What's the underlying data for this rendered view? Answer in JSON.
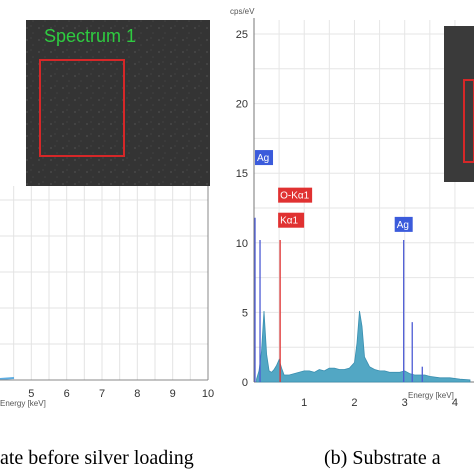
{
  "left_panel": {
    "inset_label": "Spectrum 1",
    "x_tick_labels": [
      "5",
      "6",
      "7",
      "8",
      "9",
      "10"
    ],
    "x_axis_label": "Energy [keV]",
    "caption": "ate before silver loading",
    "colors": {
      "spectrum": "#5dade2",
      "roi": "#d62728",
      "grid": "#e3e3e3"
    }
  },
  "right_panel": {
    "y_unit": "cps/eV",
    "y_tick_labels": [
      "0",
      "5",
      "10",
      "15",
      "20",
      "25"
    ],
    "x_tick_labels": [
      "1",
      "2",
      "3",
      "4"
    ],
    "x_axis_label": "Energy [keV]",
    "caption": "(b) Substrate a",
    "peak_labels": [
      {
        "text": "Ag",
        "energy_keV": 0.06,
        "color": "#3b5bdb"
      },
      {
        "text": "O-Kα1",
        "energy_keV": 0.52,
        "color": "#e03131"
      },
      {
        "text": "Kα1",
        "energy_keV": 0.52,
        "color": "#e03131"
      },
      {
        "text": "Ag",
        "energy_keV": 2.98,
        "color": "#3b5bdb"
      }
    ],
    "colors": {
      "spectrum": "#52a7c4",
      "line_blue": "#4c5bd4",
      "line_red": "#e03131"
    }
  },
  "chart_data": {
    "type": "area",
    "title": "",
    "xlabel": "Energy [keV]",
    "ylabel": "cps/eV",
    "xlim": [
      0,
      4.3
    ],
    "ylim": [
      0,
      26
    ],
    "grid": true,
    "series": [
      {
        "x": [
          0.05,
          0.1,
          0.15,
          0.2,
          0.25,
          0.3,
          0.35,
          0.4,
          0.45,
          0.5,
          0.55,
          0.6,
          0.7,
          0.8,
          0.9,
          1.0,
          1.1,
          1.2,
          1.3,
          1.4,
          1.5,
          1.6,
          1.7,
          1.8,
          1.9,
          2.0,
          2.05,
          2.1,
          2.15,
          2.2,
          2.3,
          2.4,
          2.5,
          2.6,
          2.7,
          2.8,
          2.9,
          3.0,
          3.1,
          3.2,
          3.3,
          3.4,
          3.5,
          3.7,
          3.9,
          4.1,
          4.3
        ],
        "values": [
          0.2,
          0.8,
          2.2,
          5.1,
          2.0,
          0.8,
          0.7,
          0.9,
          1.2,
          1.6,
          1.0,
          0.5,
          0.5,
          0.6,
          0.7,
          0.8,
          0.8,
          0.7,
          0.9,
          0.8,
          1.0,
          1.0,
          0.9,
          0.9,
          1.0,
          1.4,
          2.8,
          5.1,
          4.0,
          1.8,
          1.1,
          0.9,
          0.8,
          0.8,
          0.7,
          0.7,
          0.7,
          0.8,
          0.6,
          0.5,
          0.5,
          0.5,
          0.4,
          0.3,
          0.3,
          0.2,
          0.15
        ]
      }
    ],
    "peak_lines": [
      {
        "energy_keV": 0.02,
        "height": 11.8,
        "color": "blue"
      },
      {
        "energy_keV": 0.12,
        "height": 10.2,
        "color": "blue"
      },
      {
        "energy_keV": 0.52,
        "height": 10.2,
        "color": "red"
      },
      {
        "energy_keV": 2.98,
        "height": 10.2,
        "color": "blue"
      },
      {
        "energy_keV": 3.15,
        "height": 4.3,
        "color": "blue"
      },
      {
        "energy_keV": 3.35,
        "height": 1.1,
        "color": "blue"
      }
    ]
  }
}
